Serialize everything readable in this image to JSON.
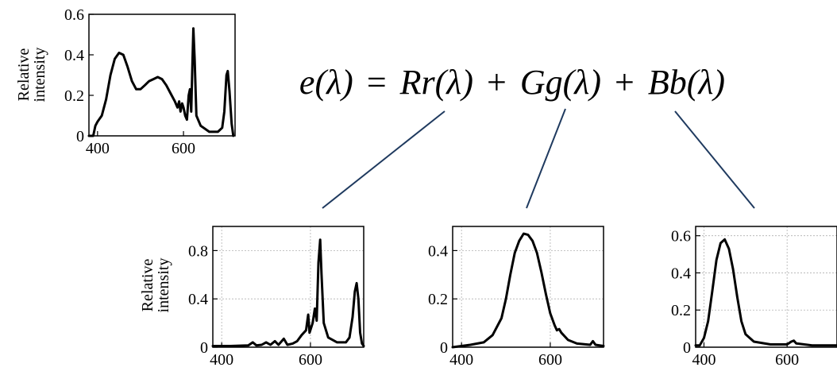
{
  "equation": {
    "parts": [
      "e(λ)",
      "=",
      "Rr(λ)",
      "+",
      "Gg(λ)",
      "+",
      "Bb(λ)"
    ]
  },
  "colors": {
    "connector": "#1f3a5f",
    "curve": "#000000",
    "grid": "#b0b0b0"
  },
  "chart_data": [
    {
      "id": "e",
      "type": "line",
      "ylabel": [
        "Relative",
        "intensity"
      ],
      "xlabel": "",
      "ylim": [
        0,
        0.6
      ],
      "xlim": [
        380,
        720
      ],
      "yticks": [
        {
          "v": 0,
          "label": "0"
        },
        {
          "v": 0.2,
          "label": "0.2"
        },
        {
          "v": 0.4,
          "label": "0.4"
        },
        {
          "v": 0.6,
          "label": "0.6"
        }
      ],
      "xticks": [
        {
          "v": 400,
          "label": "400"
        },
        {
          "v": 600,
          "label": "600"
        }
      ],
      "grid": false,
      "series": [
        {
          "points": [
            [
              380,
              0.0
            ],
            [
              390,
              0.0
            ],
            [
              395,
              0.05
            ],
            [
              400,
              0.07
            ],
            [
              410,
              0.1
            ],
            [
              420,
              0.18
            ],
            [
              430,
              0.3
            ],
            [
              440,
              0.38
            ],
            [
              450,
              0.41
            ],
            [
              460,
              0.4
            ],
            [
              470,
              0.34
            ],
            [
              480,
              0.27
            ],
            [
              490,
              0.23
            ],
            [
              500,
              0.23
            ],
            [
              510,
              0.25
            ],
            [
              520,
              0.27
            ],
            [
              530,
              0.28
            ],
            [
              540,
              0.29
            ],
            [
              550,
              0.28
            ],
            [
              560,
              0.25
            ],
            [
              570,
              0.21
            ],
            [
              580,
              0.17
            ],
            [
              586,
              0.14
            ],
            [
              590,
              0.17
            ],
            [
              593,
              0.12
            ],
            [
              597,
              0.16
            ],
            [
              600,
              0.14
            ],
            [
              604,
              0.1
            ],
            [
              608,
              0.08
            ],
            [
              612,
              0.2
            ],
            [
              615,
              0.23
            ],
            [
              618,
              0.12
            ],
            [
              621,
              0.37
            ],
            [
              623,
              0.53
            ],
            [
              626,
              0.38
            ],
            [
              630,
              0.1
            ],
            [
              640,
              0.05
            ],
            [
              660,
              0.02
            ],
            [
              680,
              0.02
            ],
            [
              690,
              0.04
            ],
            [
              695,
              0.12
            ],
            [
              700,
              0.3
            ],
            [
              703,
              0.32
            ],
            [
              707,
              0.22
            ],
            [
              712,
              0.06
            ],
            [
              716,
              0.0
            ]
          ]
        }
      ]
    },
    {
      "id": "r",
      "type": "line",
      "ylabel": [
        "Relative",
        "intensity"
      ],
      "xlabel": "",
      "ylim": [
        0,
        1.0
      ],
      "xlim": [
        380,
        720
      ],
      "yticks": [
        {
          "v": 0,
          "label": "0"
        },
        {
          "v": 0.4,
          "label": "0.4"
        },
        {
          "v": 0.8,
          "label": "0.8"
        }
      ],
      "xticks": [
        {
          "v": 400,
          "label": "400"
        },
        {
          "v": 600,
          "label": "600"
        }
      ],
      "grid": true,
      "series": [
        {
          "points": [
            [
              380,
              0.01
            ],
            [
              420,
              0.01
            ],
            [
              460,
              0.015
            ],
            [
              470,
              0.04
            ],
            [
              478,
              0.015
            ],
            [
              490,
              0.02
            ],
            [
              500,
              0.04
            ],
            [
              510,
              0.02
            ],
            [
              520,
              0.05
            ],
            [
              528,
              0.02
            ],
            [
              540,
              0.07
            ],
            [
              548,
              0.02
            ],
            [
              560,
              0.03
            ],
            [
              570,
              0.05
            ],
            [
              580,
              0.1
            ],
            [
              590,
              0.14
            ],
            [
              595,
              0.27
            ],
            [
              598,
              0.12
            ],
            [
              605,
              0.2
            ],
            [
              610,
              0.32
            ],
            [
              614,
              0.22
            ],
            [
              618,
              0.7
            ],
            [
              622,
              0.89
            ],
            [
              625,
              0.6
            ],
            [
              630,
              0.2
            ],
            [
              640,
              0.08
            ],
            [
              660,
              0.04
            ],
            [
              680,
              0.04
            ],
            [
              688,
              0.08
            ],
            [
              695,
              0.25
            ],
            [
              700,
              0.46
            ],
            [
              704,
              0.53
            ],
            [
              708,
              0.4
            ],
            [
              712,
              0.12
            ],
            [
              716,
              0.03
            ],
            [
              720,
              0.01
            ]
          ]
        }
      ]
    },
    {
      "id": "g",
      "type": "line",
      "ylabel": [],
      "xlabel": "",
      "ylim": [
        0,
        0.5
      ],
      "xlim": [
        380,
        720
      ],
      "yticks": [
        {
          "v": 0,
          "label": "0"
        },
        {
          "v": 0.2,
          "label": "0.2"
        },
        {
          "v": 0.4,
          "label": "0.4"
        }
      ],
      "xticks": [
        {
          "v": 400,
          "label": "400"
        },
        {
          "v": 600,
          "label": "600"
        }
      ],
      "grid": true,
      "series": [
        {
          "points": [
            [
              380,
              0.0
            ],
            [
              420,
              0.01
            ],
            [
              450,
              0.02
            ],
            [
              470,
              0.05
            ],
            [
              490,
              0.12
            ],
            [
              500,
              0.2
            ],
            [
              510,
              0.3
            ],
            [
              520,
              0.39
            ],
            [
              530,
              0.44
            ],
            [
              540,
              0.47
            ],
            [
              550,
              0.465
            ],
            [
              560,
              0.44
            ],
            [
              570,
              0.39
            ],
            [
              580,
              0.31
            ],
            [
              590,
              0.22
            ],
            [
              600,
              0.14
            ],
            [
              610,
              0.09
            ],
            [
              615,
              0.07
            ],
            [
              620,
              0.075
            ],
            [
              625,
              0.06
            ],
            [
              640,
              0.03
            ],
            [
              660,
              0.015
            ],
            [
              690,
              0.01
            ],
            [
              696,
              0.025
            ],
            [
              702,
              0.01
            ],
            [
              720,
              0.005
            ]
          ]
        }
      ]
    },
    {
      "id": "b",
      "type": "line",
      "ylabel": [],
      "xlabel": "",
      "ylim": [
        0,
        0.65
      ],
      "xlim": [
        380,
        720
      ],
      "yticks": [
        {
          "v": 0,
          "label": "0"
        },
        {
          "v": 0.2,
          "label": "0.2"
        },
        {
          "v": 0.4,
          "label": "0.4"
        },
        {
          "v": 0.6,
          "label": "0.6"
        }
      ],
      "xticks": [
        {
          "v": 400,
          "label": "400"
        },
        {
          "v": 600,
          "label": "600"
        }
      ],
      "grid": true,
      "series": [
        {
          "points": [
            [
              380,
              0.01
            ],
            [
              390,
              0.01
            ],
            [
              400,
              0.05
            ],
            [
              410,
              0.14
            ],
            [
              420,
              0.3
            ],
            [
              430,
              0.47
            ],
            [
              440,
              0.56
            ],
            [
              450,
              0.58
            ],
            [
              460,
              0.53
            ],
            [
              470,
              0.42
            ],
            [
              480,
              0.27
            ],
            [
              490,
              0.14
            ],
            [
              500,
              0.07
            ],
            [
              520,
              0.03
            ],
            [
              560,
              0.015
            ],
            [
              600,
              0.015
            ],
            [
              610,
              0.03
            ],
            [
              616,
              0.035
            ],
            [
              622,
              0.02
            ],
            [
              660,
              0.01
            ],
            [
              700,
              0.01
            ],
            [
              720,
              0.01
            ]
          ]
        }
      ]
    }
  ]
}
